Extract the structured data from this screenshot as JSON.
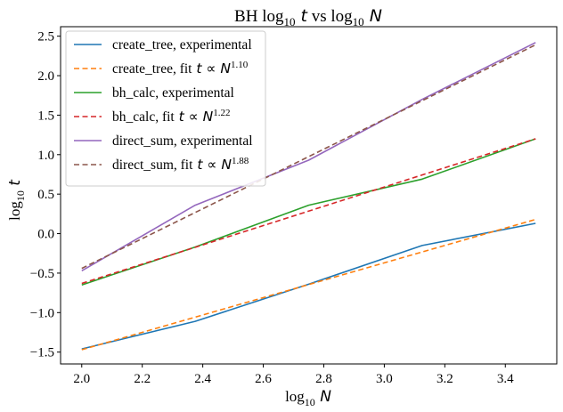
{
  "chart_data": {
    "type": "line",
    "title": "BH log₁₀ t vs log₁₀ N",
    "xlabel": "log₁₀ N",
    "ylabel": "log₁₀ t",
    "xlim": [
      1.93,
      3.57
    ],
    "ylim": [
      -1.65,
      2.62
    ],
    "xticks": [
      2.0,
      2.2,
      2.4,
      2.6,
      2.8,
      3.0,
      3.2,
      3.4
    ],
    "yticks": [
      -1.5,
      -1.0,
      -0.5,
      0.0,
      0.5,
      1.0,
      1.5,
      2.0,
      2.5
    ],
    "xtick_labels": [
      "2.0",
      "2.2",
      "2.4",
      "2.6",
      "2.8",
      "3.0",
      "3.2",
      "3.4"
    ],
    "ytick_labels": [
      "−1.5",
      "−1.0",
      "−0.5",
      "0.0",
      "0.5",
      "1.0",
      "1.5",
      "2.0",
      "2.5"
    ],
    "grid": false,
    "legend_position": "top-left",
    "series": [
      {
        "name": "create_tree, experimental",
        "legend": {
          "text": "create_tree, experimental"
        },
        "color": "#1f77b4",
        "style": "solid",
        "x": [
          2.0,
          2.375,
          2.75,
          3.125,
          3.5
        ],
        "y": [
          -1.46,
          -1.11,
          -0.64,
          -0.15,
          0.13
        ]
      },
      {
        "name": "create_tree, fit t ∝ N^1.10",
        "legend": {
          "text": "create_tree, fit",
          "math": "t ∝ N",
          "exp": "1.10"
        },
        "color": "#ff7f0e",
        "style": "dashed",
        "x": [
          2.0,
          3.5
        ],
        "y": [
          -1.47,
          0.18
        ]
      },
      {
        "name": "bh_calc, experimental",
        "legend": {
          "text": "bh_calc, experimental"
        },
        "color": "#2ca02c",
        "style": "solid",
        "x": [
          2.0,
          2.375,
          2.75,
          3.125,
          3.5
        ],
        "y": [
          -0.65,
          -0.17,
          0.36,
          0.69,
          1.2
        ]
      },
      {
        "name": "bh_calc, fit t ∝ N^1.22",
        "legend": {
          "text": "bh_calc, fit",
          "math": "t ∝ N",
          "exp": "1.22"
        },
        "color": "#d62728",
        "style": "dashed",
        "x": [
          2.0,
          3.5
        ],
        "y": [
          -0.63,
          1.2
        ]
      },
      {
        "name": "direct_sum, experimental",
        "legend": {
          "text": "direct_sum, experimental"
        },
        "color": "#9467bd",
        "style": "solid",
        "x": [
          2.0,
          2.375,
          2.75,
          3.125,
          3.5
        ],
        "y": [
          -0.47,
          0.36,
          0.93,
          1.7,
          2.42
        ]
      },
      {
        "name": "direct_sum, fit t ∝ N^1.88",
        "legend": {
          "text": "direct_sum, fit",
          "math": "t ∝ N",
          "exp": "1.88"
        },
        "color": "#8c564b",
        "style": "dashed",
        "x": [
          2.0,
          3.5
        ],
        "y": [
          -0.44,
          2.39
        ]
      }
    ]
  }
}
